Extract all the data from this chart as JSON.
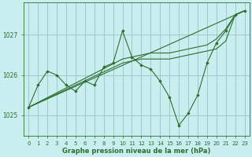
{
  "bg_color": "#c8eef0",
  "grid_color": "#a0c8c8",
  "line_color": "#2d6e2d",
  "marker_color": "#2d6e2d",
  "xlabel": "Graphe pression niveau de la mer (hPa)",
  "xlim": [
    -0.5,
    23.5
  ],
  "ylim": [
    1024.5,
    1027.8
  ],
  "yticks": [
    1025,
    1026,
    1027
  ],
  "xticks": [
    0,
    1,
    2,
    3,
    4,
    5,
    6,
    7,
    8,
    9,
    10,
    11,
    12,
    13,
    14,
    15,
    16,
    17,
    18,
    19,
    20,
    21,
    22,
    23
  ],
  "series": [
    {
      "x": [
        0,
        1,
        2,
        3,
        4,
        5,
        6,
        7,
        8,
        9,
        10,
        11,
        12,
        13,
        14,
        15,
        16,
        17,
        18,
        19,
        20,
        21,
        22,
        23
      ],
      "y": [
        1025.2,
        1025.75,
        1026.1,
        1026.0,
        1025.75,
        1025.6,
        1025.85,
        1025.75,
        1026.2,
        1026.3,
        1027.1,
        1026.45,
        1026.25,
        1026.15,
        1025.85,
        1025.45,
        1024.75,
        1025.05,
        1025.5,
        1026.3,
        1026.8,
        1027.1,
        1027.5,
        1027.6
      ],
      "has_markers": true
    },
    {
      "x": [
        0,
        23
      ],
      "y": [
        1025.2,
        1027.6
      ],
      "has_markers": false
    },
    {
      "x": [
        0,
        10,
        11,
        12,
        13,
        14,
        15,
        16,
        17,
        18,
        19,
        20,
        21,
        22,
        23
      ],
      "y": [
        1025.2,
        1026.4,
        1026.45,
        1026.5,
        1026.55,
        1026.55,
        1026.55,
        1026.6,
        1026.65,
        1026.7,
        1026.75,
        1026.9,
        1027.15,
        1027.5,
        1027.6
      ],
      "has_markers": false
    },
    {
      "x": [
        0,
        10,
        11,
        12,
        13,
        14,
        15,
        16,
        17,
        18,
        19,
        20,
        21,
        22,
        23
      ],
      "y": [
        1025.2,
        1026.3,
        1026.35,
        1026.4,
        1026.4,
        1026.4,
        1026.4,
        1026.45,
        1026.5,
        1026.55,
        1026.6,
        1026.65,
        1026.85,
        1027.5,
        1027.6
      ],
      "has_markers": false
    }
  ]
}
